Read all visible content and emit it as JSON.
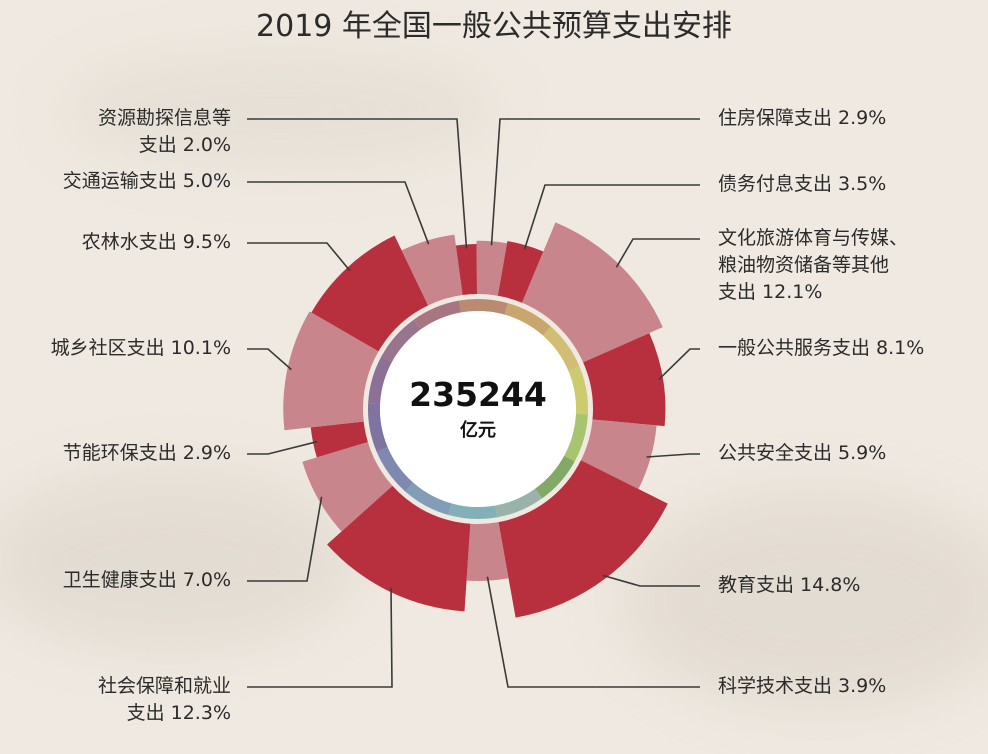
{
  "chart_data": {
    "type": "pie",
    "title": "2019 年全国一般公共预算支出安排",
    "center_value": "235244",
    "center_unit": "亿元",
    "colors": {
      "dark": "#b8303d",
      "light": "#c8858b",
      "background": "#efe9e1",
      "leader": "#3a3a3a"
    },
    "inner_ring_colors": [
      "#b07a5e",
      "#c29a58",
      "#cdb560",
      "#c7c65a",
      "#9cbd5a",
      "#6f9e50",
      "#8aa9a0",
      "#6fa6b0",
      "#6d8fb0",
      "#6b77a4",
      "#6a5f93",
      "#7a5b8a",
      "#8a5f7e",
      "#9a6270"
    ],
    "slices": [
      {
        "name": "住房保障支出",
        "value": 2.9,
        "label": "2.9%",
        "shade": "light"
      },
      {
        "name": "债务付息支出",
        "value": 3.5,
        "label": "3.5%",
        "shade": "dark"
      },
      {
        "name": "文化旅游体育与传媒、粮油物资储备等其他支出",
        "label_lines": [
          "文化旅游体育与传媒、",
          "粮油物资储备等其他"
        ],
        "last_line": "支出",
        "value": 12.1,
        "label": "12.1%",
        "shade": "light"
      },
      {
        "name": "一般公共服务支出",
        "value": 8.1,
        "label": "8.1%",
        "shade": "dark"
      },
      {
        "name": "公共安全支出",
        "value": 5.9,
        "label": "5.9%",
        "shade": "light"
      },
      {
        "name": "教育支出",
        "value": 14.8,
        "label": "14.8%",
        "shade": "dark"
      },
      {
        "name": "科学技术支出",
        "value": 3.9,
        "label": "3.9%",
        "shade": "light"
      },
      {
        "name": "社会保障和就业支出",
        "label_lines": [
          "社会保障和就业"
        ],
        "last_line": "支出",
        "value": 12.3,
        "label": "12.3%",
        "shade": "dark"
      },
      {
        "name": "卫生健康支出",
        "value": 7.0,
        "label": "7.0%",
        "shade": "light"
      },
      {
        "name": "节能环保支出",
        "value": 2.9,
        "label": "2.9%",
        "shade": "dark"
      },
      {
        "name": "城乡社区支出",
        "value": 10.1,
        "label": "10.1%",
        "shade": "light"
      },
      {
        "name": "农林水支出",
        "value": 9.5,
        "label": "9.5%",
        "shade": "dark"
      },
      {
        "name": "交通运输支出",
        "value": 5.0,
        "label": "5.0%",
        "shade": "light"
      },
      {
        "name": "资源勘探信息等支出",
        "label_lines": [
          "资源勘探信息等"
        ],
        "last_line": "支出",
        "value": 2.0,
        "label": "2.0%",
        "shade": "dark"
      }
    ]
  }
}
